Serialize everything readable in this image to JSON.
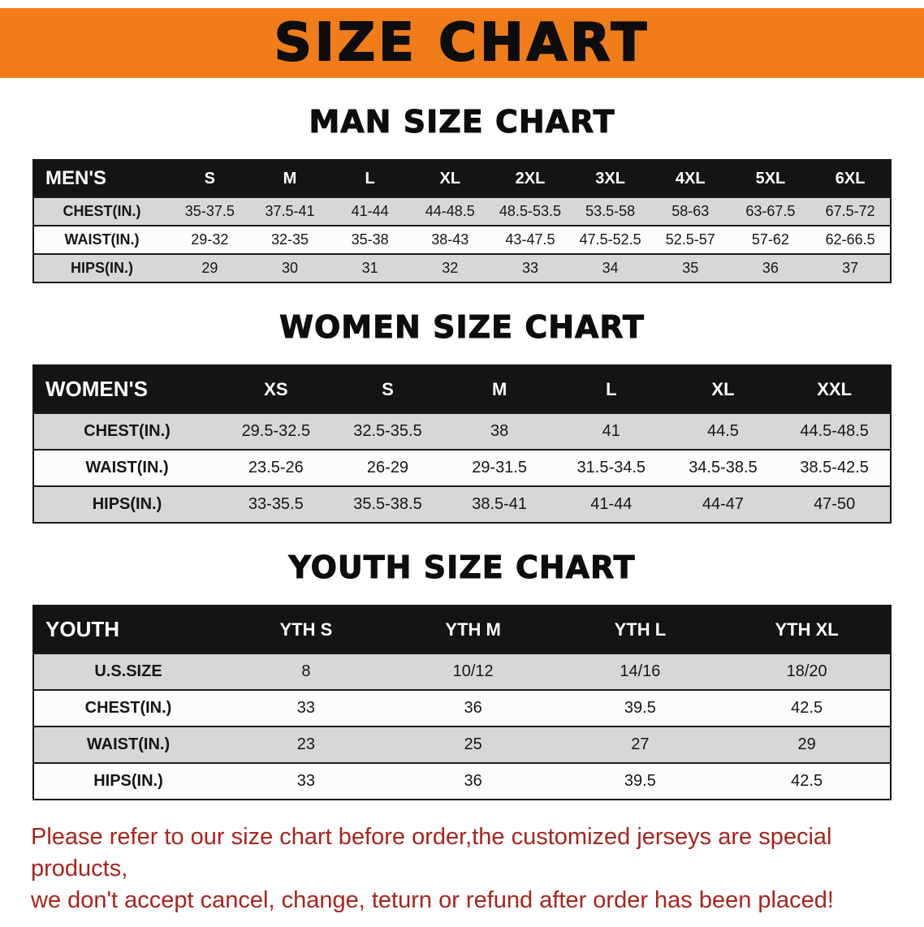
{
  "banner": {
    "title": "SIZE CHART"
  },
  "colors": {
    "banner_orange": "#f07d1a",
    "table_header_black": "#141414",
    "row_gray": "#d7d7d7",
    "disclaimer_red": "#a8241c"
  },
  "men": {
    "section_title": "MAN SIZE CHART",
    "table": {
      "header": [
        "MEN'S",
        "S",
        "M",
        "L",
        "XL",
        "2XL",
        "3XL",
        "4XL",
        "5XL",
        "6XL"
      ],
      "rows": [
        [
          "CHEST(IN.)",
          "35-37.5",
          "37.5-41",
          "41-44",
          "44-48.5",
          "48.5-53.5",
          "53.5-58",
          "58-63",
          "63-67.5",
          "67.5-72"
        ],
        [
          "WAIST(IN.)",
          "29-32",
          "32-35",
          "35-38",
          "38-43",
          "43-47.5",
          "47.5-52.5",
          "52.5-57",
          "57-62",
          "62-66.5"
        ],
        [
          "HIPS(IN.)",
          "29",
          "30",
          "31",
          "32",
          "33",
          "34",
          "35",
          "36",
          "37"
        ]
      ]
    }
  },
  "women": {
    "section_title": "WOMEN SIZE CHART",
    "table": {
      "header": [
        "WOMEN'S",
        "XS",
        "S",
        "M",
        "L",
        "XL",
        "XXL"
      ],
      "rows": [
        [
          "CHEST(IN.)",
          "29.5-32.5",
          "32.5-35.5",
          "38",
          "41",
          "44.5",
          "44.5-48.5"
        ],
        [
          "WAIST(IN.)",
          "23.5-26",
          "26-29",
          "29-31.5",
          "31.5-34.5",
          "34.5-38.5",
          "38.5-42.5"
        ],
        [
          "HIPS(IN.)",
          "33-35.5",
          "35.5-38.5",
          "38.5-41",
          "41-44",
          "44-47",
          "47-50"
        ]
      ]
    }
  },
  "youth": {
    "section_title": "YOUTH SIZE CHART",
    "table": {
      "header": [
        "YOUTH",
        "YTH S",
        "YTH M",
        "YTH L",
        "YTH XL"
      ],
      "rows": [
        [
          "U.S.SIZE",
          "8",
          "10/12",
          "14/16",
          "18/20"
        ],
        [
          "CHEST(IN.)",
          "33",
          "36",
          "39.5",
          "42.5"
        ],
        [
          "WAIST(IN.)",
          "23",
          "25",
          "27",
          "29"
        ],
        [
          "HIPS(IN.)",
          "33",
          "36",
          "39.5",
          "42.5"
        ]
      ]
    }
  },
  "disclaimer": {
    "line1": "Please refer to our size chart before order,the customized jerseys are special products,",
    "line2": "we don't accept cancel, change, teturn or refund after order has been placed!"
  }
}
